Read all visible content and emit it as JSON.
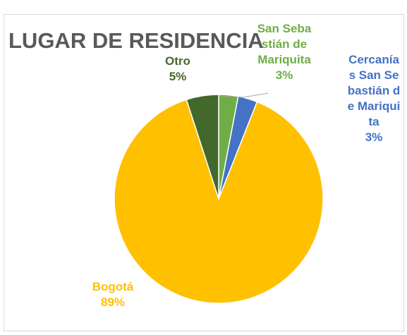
{
  "chart_data": {
    "type": "pie",
    "title": "LUGAR DE RESIDENCIA",
    "categories": [
      "San Sebastián de Mariquita",
      "Cercanías San Sebastián de Mariquita",
      "Bogotá",
      "Otro"
    ],
    "values": [
      3,
      3,
      89,
      5
    ],
    "value_labels": [
      "3%",
      "3%",
      "89%",
      "5%"
    ],
    "colors": [
      "#70ad47",
      "#4472c4",
      "#ffc000",
      "#43682b"
    ]
  }
}
